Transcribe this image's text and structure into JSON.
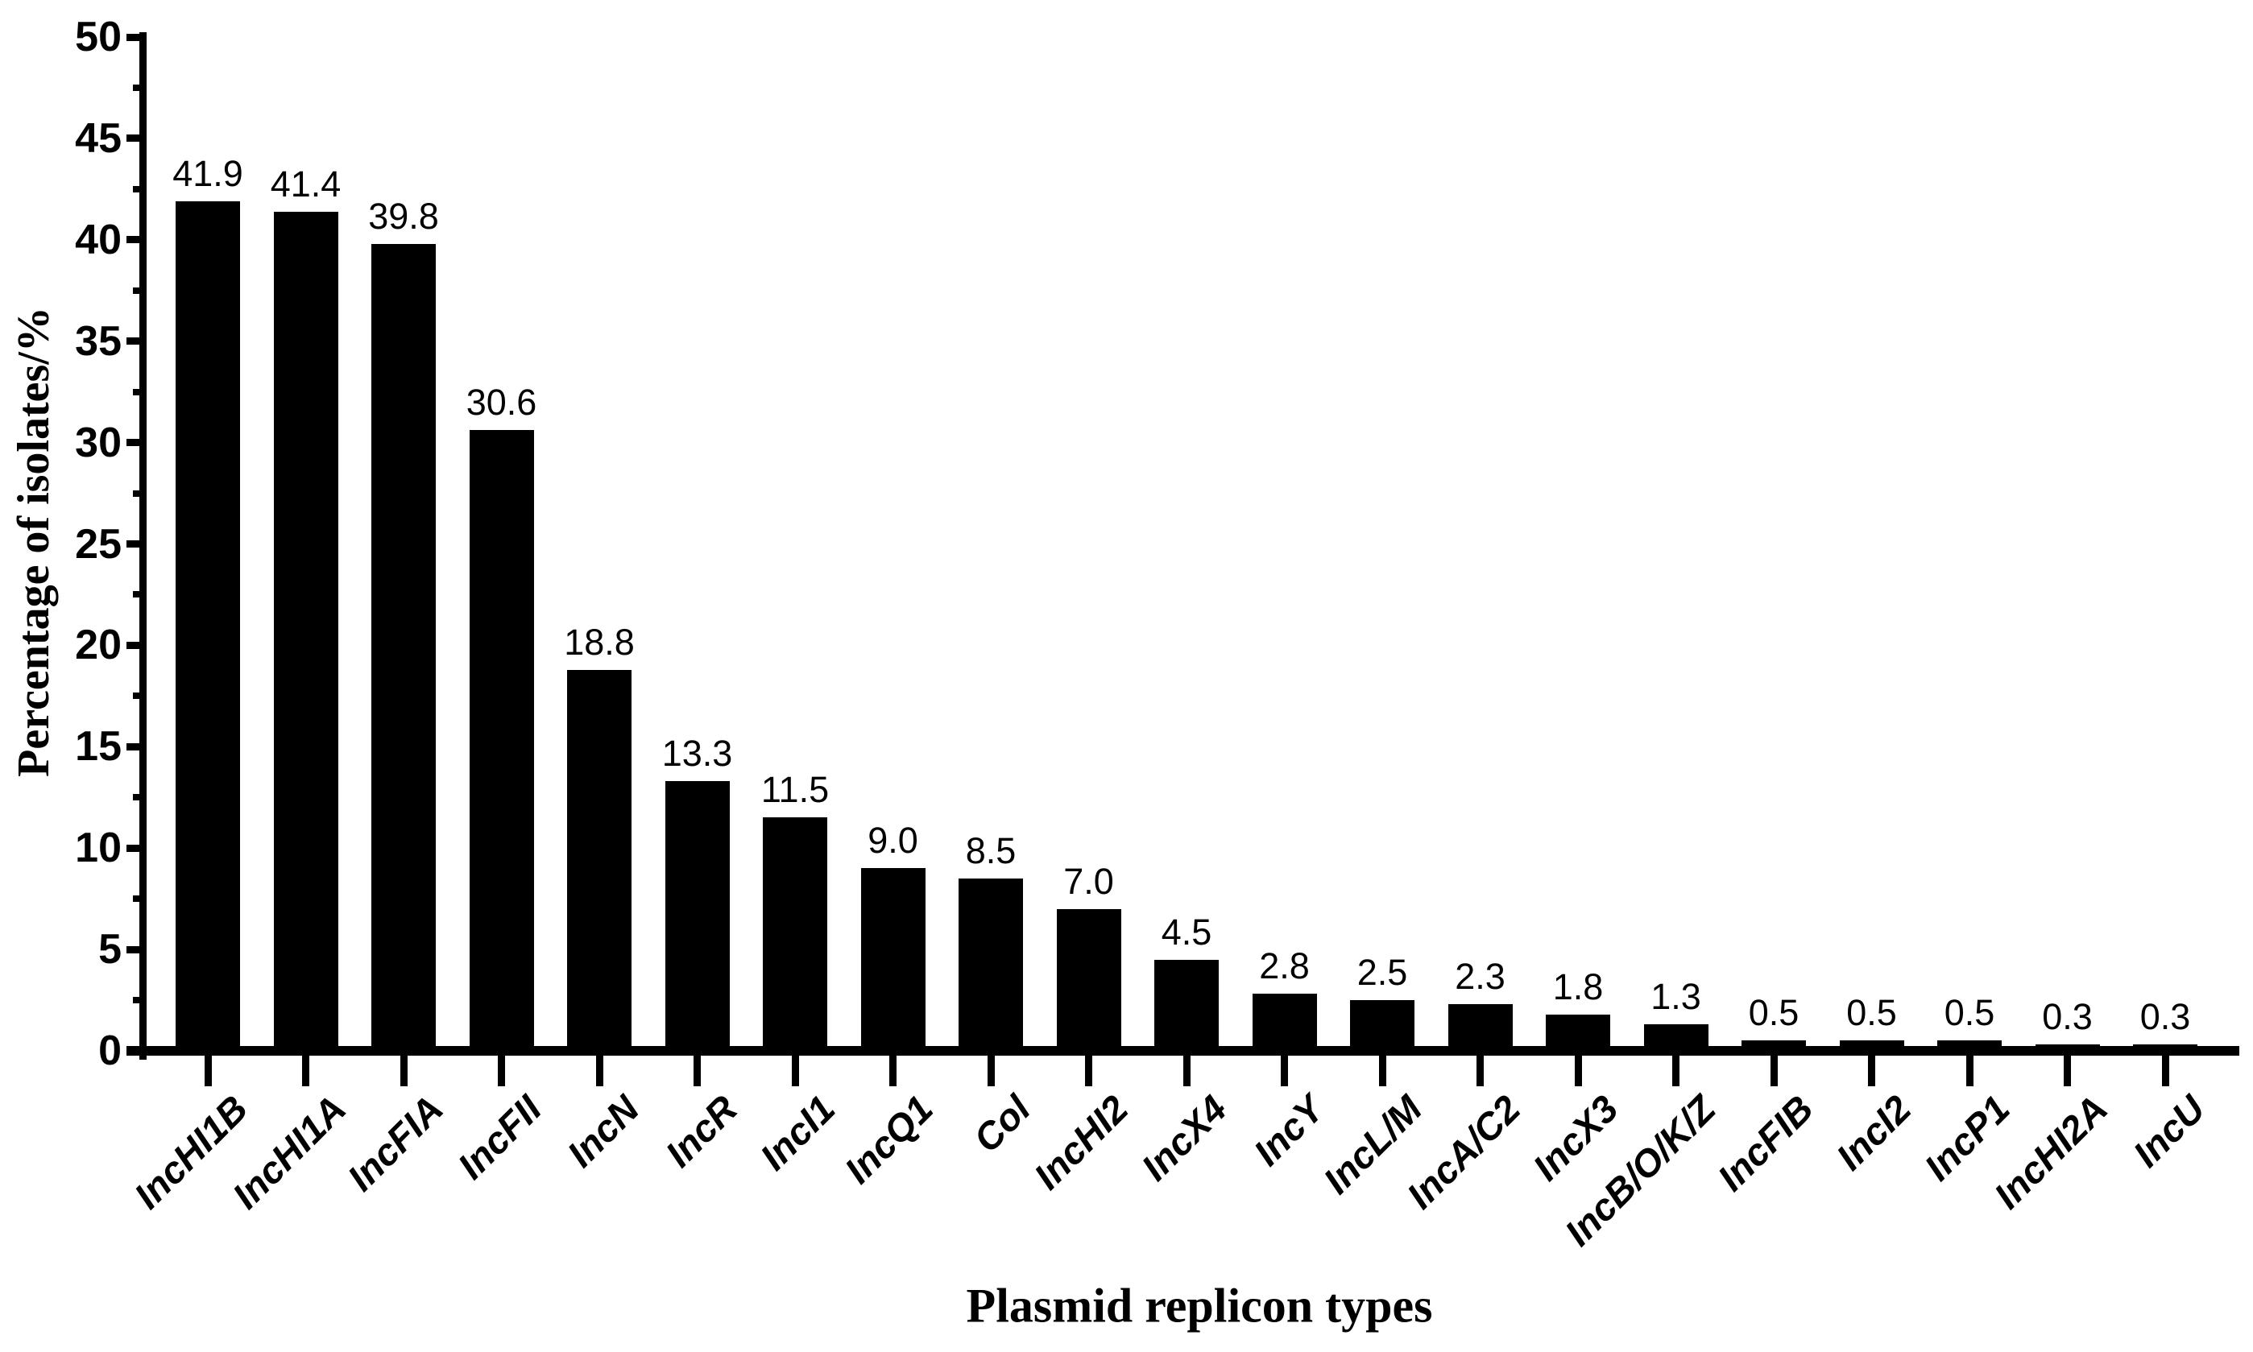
{
  "figure": {
    "background": "#ffffff",
    "axis_color": "#000000",
    "text_color": "#000000"
  },
  "chart_data": {
    "type": "bar",
    "xlabel": "Plasmid replicon types",
    "ylabel": "Percentage of isolates/%",
    "ylim": [
      0,
      50
    ],
    "ytick_step": 5,
    "yminor_step": 2.5,
    "grid": false,
    "legend_position": "none",
    "bar_color": "#000000",
    "axis_color": "#000000",
    "categories": [
      "IncHI1B",
      "IncHI1A",
      "IncFIA",
      "IncFII",
      "IncN",
      "IncR",
      "IncI1",
      "IncQ1",
      "Col",
      "IncHI2",
      "IncX4",
      "IncY",
      "IncL/M",
      "IncA/C2",
      "IncX3",
      "IncB/O/K/Z",
      "IncFIB",
      "IncI2",
      "IncP1",
      "IncHI2A",
      "IncU"
    ],
    "values": [
      41.9,
      41.4,
      39.8,
      30.6,
      18.8,
      13.3,
      11.5,
      9.0,
      8.5,
      7.0,
      4.5,
      2.8,
      2.5,
      2.3,
      1.8,
      1.3,
      0.5,
      0.5,
      0.5,
      0.3,
      0.3
    ],
    "value_labels": [
      "41.9",
      "41.4",
      "39.8",
      "30.6",
      "18.8",
      "13.3",
      "11.5",
      "9.0",
      "8.5",
      "7.0",
      "4.5",
      "2.8",
      "2.5",
      "2.3",
      "1.8",
      "1.3",
      "0.5",
      "0.5",
      "0.5",
      "0.3",
      "0.3"
    ],
    "ytick_labels": [
      "0",
      "5",
      "10",
      "15",
      "20",
      "25",
      "30",
      "35",
      "40",
      "45",
      "50"
    ]
  }
}
